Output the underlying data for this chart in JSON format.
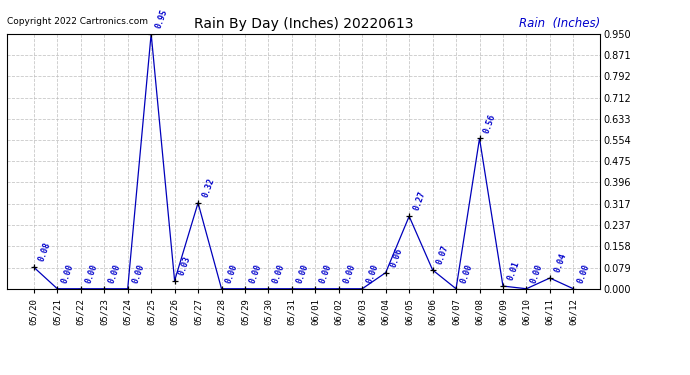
{
  "title": "Rain By Day (Inches) 20220613",
  "copyright_text": "Copyright 2022 Cartronics.com",
  "legend_text": "Rain  (Inches)",
  "dates": [
    "05/20",
    "05/21",
    "05/22",
    "05/23",
    "05/24",
    "05/25",
    "05/26",
    "05/27",
    "05/28",
    "05/29",
    "05/30",
    "05/31",
    "06/01",
    "06/02",
    "06/03",
    "06/04",
    "06/05",
    "06/06",
    "06/07",
    "06/08",
    "06/09",
    "06/10",
    "06/11",
    "06/12"
  ],
  "values": [
    0.08,
    0.0,
    0.0,
    0.0,
    0.0,
    0.95,
    0.03,
    0.32,
    0.0,
    0.0,
    0.0,
    0.0,
    0.0,
    0.0,
    0.0,
    0.06,
    0.27,
    0.07,
    0.0,
    0.56,
    0.01,
    0.0,
    0.04,
    0.0
  ],
  "line_color": "#0000bb",
  "marker_color": "#000000",
  "label_color": "#0000cc",
  "background_color": "#ffffff",
  "grid_color": "#bbbbbb",
  "title_color": "#000000",
  "copyright_color": "#000000",
  "legend_color": "#0000cc",
  "ylim": [
    0.0,
    0.95
  ],
  "yticks": [
    0.0,
    0.079,
    0.158,
    0.237,
    0.317,
    0.396,
    0.475,
    0.554,
    0.633,
    0.712,
    0.792,
    0.871,
    0.95
  ],
  "label_fontsize": 6.0,
  "title_fontsize": 10,
  "copyright_fontsize": 6.5,
  "legend_fontsize": 8.5
}
